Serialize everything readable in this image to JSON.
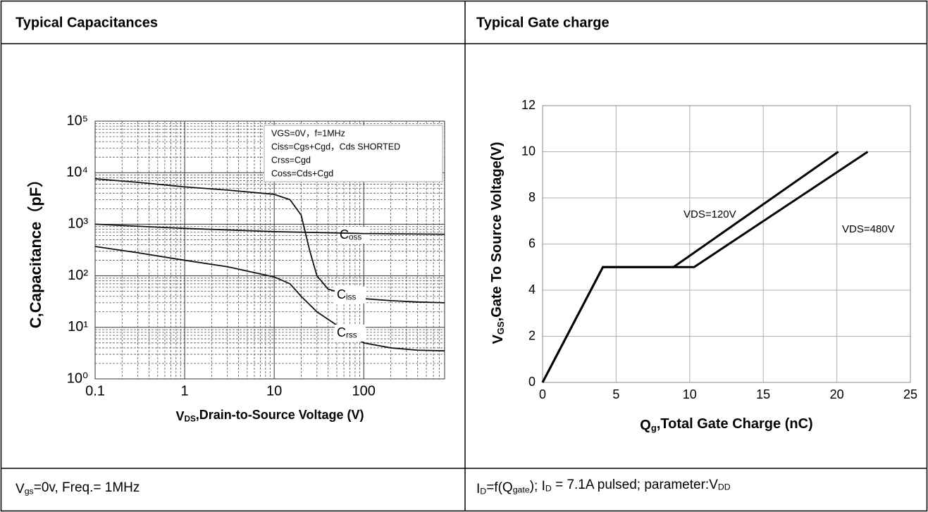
{
  "table": {
    "headers": [
      "Typical Capacitances",
      "Typical Gate charge"
    ],
    "footers": [
      [
        "V",
        "gs",
        "=0v, Freq.= 1MHz"
      ],
      [
        "I",
        "D",
        "=f(Q",
        "gate",
        ");  I",
        "D",
        " = 7.1A  pulsed; parameter:V",
        "DD"
      ]
    ]
  },
  "chart_data": [
    {
      "type": "line",
      "log_x": true,
      "log_y": true,
      "grid": true,
      "minor_grid": true,
      "ylabel": [
        "C,Capacitance（pF）"
      ],
      "xlabel": [
        "V",
        "DS",
        ",Drain-to-Source Voltage (V)"
      ],
      "xlim": [
        0.1,
        800
      ],
      "ylim": [
        1,
        100000
      ],
      "xticks": [
        0.1,
        1,
        10,
        100
      ],
      "yticks": [
        {
          "value": 1,
          "label": "10⁰"
        },
        {
          "value": 10,
          "label": "10¹"
        },
        {
          "value": 100,
          "label": "10²"
        },
        {
          "value": 1000,
          "label": "10³"
        },
        {
          "value": 10000,
          "label": "10⁴"
        },
        {
          "value": 100000,
          "label": "10⁵"
        }
      ],
      "annotation": [
        "VGS=0V，f=1MHz",
        "Ciss=Cgs+Cgd，Cds SHORTED",
        "Crss=Cgd",
        "Coss=Cds+Cgd"
      ],
      "series": [
        {
          "name": [
            "C",
            "oss"
          ],
          "color": "#111111",
          "x": [
            0.1,
            0.3,
            1,
            3,
            10,
            15,
            20,
            25,
            30,
            40,
            60,
            100,
            200,
            400,
            800
          ],
          "values": [
            7600,
            6500,
            5300,
            4600,
            3800,
            3000,
            1500,
            300,
            100,
            55,
            45,
            36,
            33,
            31,
            30
          ]
        },
        {
          "name": [
            "C",
            "iss"
          ],
          "color": "#111111",
          "x": [
            0.1,
            1,
            10,
            100,
            800
          ],
          "values": [
            1000,
            830,
            720,
            660,
            640
          ]
        },
        {
          "name": [
            "C",
            "rss"
          ],
          "color": "#111111",
          "x": [
            0.1,
            0.3,
            1,
            3,
            10,
            15,
            20,
            30,
            50,
            70,
            100,
            200,
            400,
            800
          ],
          "values": [
            370,
            280,
            200,
            150,
            95,
            70,
            40,
            20,
            11,
            7,
            5,
            4,
            3.6,
            3.5
          ]
        }
      ]
    },
    {
      "type": "line",
      "grid": true,
      "ylabel": [
        "V",
        "GS",
        ",Gate To Source Voltage(V)"
      ],
      "xlabel": [
        "Q",
        "g",
        ",Total Gate Charge (nC)"
      ],
      "xlim": [
        0,
        25
      ],
      "ylim": [
        0,
        12
      ],
      "xticks": [
        0,
        5,
        10,
        15,
        20,
        25
      ],
      "yticks": [
        0,
        2,
        4,
        6,
        8,
        10,
        12
      ],
      "series": [
        {
          "name": [
            "VDS=120V"
          ],
          "color": "#000000",
          "x": [
            0,
            4.1,
            8.9,
            20.1
          ],
          "values": [
            0,
            5,
            5,
            10
          ]
        },
        {
          "name": [
            "VDS=480V"
          ],
          "color": "#000000",
          "x": [
            0,
            4.1,
            10.3,
            22.1
          ],
          "values": [
            0,
            5,
            5,
            10
          ]
        }
      ]
    }
  ]
}
